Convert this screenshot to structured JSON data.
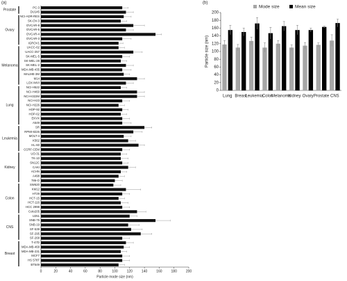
{
  "chart_data": [
    {
      "type": "hbar",
      "panel": "(a)",
      "xlabel": "Particle mode size (nm)",
      "xlim": [
        0,
        200
      ],
      "xticks": [
        0,
        20,
        40,
        60,
        80,
        100,
        120,
        140,
        160,
        180,
        200
      ],
      "color": "#111111",
      "error_color": "#999999",
      "groups": [
        {
          "name": "Prostate",
          "categories": [
            "PC-3",
            "DU145"
          ],
          "values": [
            110,
            115
          ],
          "errors": [
            8,
            10
          ]
        },
        {
          "name": "Ovary",
          "categories": [
            "NCI-ADR-RES",
            "SK-OV-3",
            "OVCAR-8",
            "OVCAR-5",
            "OVCAR-4",
            "OVCAR-3",
            "IGROV1"
          ],
          "values": [
            112,
            108,
            125,
            115,
            155,
            110,
            105
          ],
          "errors": [
            10,
            8,
            15,
            10,
            8,
            12,
            6
          ]
        },
        {
          "name": "Melanoma",
          "categories": [
            "UACC-62",
            "UACC-257",
            "SK-MEL-5",
            "SK-MEL-28",
            "SK-MEL-2",
            "MDA-MB-435",
            "MALME-3M",
            "M14",
            "LOX IMVI"
          ],
          "values": [
            105,
            125,
            110,
            108,
            115,
            110,
            112,
            130,
            115
          ],
          "errors": [
            8,
            12,
            10,
            8,
            10,
            12,
            8,
            10,
            10
          ]
        },
        {
          "name": "Lung",
          "categories": [
            "NCI-H522",
            "NCI-H460",
            "NCI-H322M",
            "NCI-H23",
            "NCI-H226",
            "HOP-92",
            "HOP-62",
            "EKVX",
            "A549"
          ],
          "values": [
            108,
            130,
            130,
            110,
            105,
            110,
            108,
            110,
            110
          ],
          "errors": [
            8,
            10,
            10,
            10,
            8,
            8,
            8,
            10,
            12
          ]
        },
        {
          "name": "Leukemia",
          "categories": [
            "SR",
            "RPMI-8226",
            "MOLT-4",
            "K562",
            "HL-60",
            "CCRF-CEM"
          ],
          "values": [
            140,
            125,
            112,
            118,
            132,
            110
          ],
          "errors": [
            10,
            12,
            10,
            10,
            8,
            10
          ]
        },
        {
          "name": "Kidney",
          "categories": [
            "UO-31",
            "TK-10",
            "SN12C",
            "CAKI",
            "ACHN",
            "A498",
            "786-O"
          ],
          "values": [
            108,
            108,
            110,
            118,
            108,
            105,
            100
          ],
          "errors": [
            8,
            10,
            8,
            10,
            8,
            8,
            10
          ]
        },
        {
          "name": "Colon",
          "categories": [
            "SW620",
            "KM12",
            "HT29",
            "HCT-15",
            "HCT-116",
            "HCC 2998",
            "Colo205"
          ],
          "values": [
            98,
            115,
            110,
            105,
            108,
            110,
            130
          ],
          "errors": [
            10,
            20,
            10,
            8,
            10,
            10,
            12
          ]
        },
        {
          "name": "CNS",
          "categories": [
            "U251",
            "SNB-75",
            "SNB-19",
            "SF-539",
            "SF-295",
            "SF-268"
          ],
          "values": [
            120,
            155,
            118,
            122,
            135,
            110
          ],
          "errors": [
            10,
            20,
            15,
            15,
            15,
            10
          ]
        },
        {
          "name": "Breast",
          "categories": [
            "T-47D",
            "MDA-MB-468",
            "MDA-MB-231",
            "MCF7",
            "HS 578T",
            "BT549"
          ],
          "values": [
            115,
            112,
            108,
            110,
            110,
            105
          ],
          "errors": [
            10,
            8,
            8,
            10,
            10,
            8
          ]
        }
      ]
    },
    {
      "type": "bar",
      "panel": "(b)",
      "ylabel": "Particle size (nm)",
      "ylim": [
        0,
        200
      ],
      "yticks": [
        0,
        20,
        40,
        60,
        80,
        100,
        120,
        140,
        160,
        180,
        200
      ],
      "categories": [
        "Lung",
        "Breast",
        "Leukemia",
        "Colon",
        "Melanoma",
        "Kidney",
        "Ovary",
        "Prostate",
        "CNS"
      ],
      "series": [
        {
          "name": "Mode size",
          "color": "#a6a6a6",
          "values": [
            118,
            110,
            127,
            110,
            120,
            110,
            115,
            117,
            128
          ],
          "errors": [
            10,
            8,
            10,
            12,
            8,
            7,
            8,
            5,
            15
          ]
        },
        {
          "name": "Mean size",
          "color": "#000000",
          "values": [
            155,
            150,
            172,
            147,
            165,
            155,
            155,
            163,
            173
          ],
          "errors": [
            12,
            10,
            15,
            15,
            12,
            12,
            5,
            2,
            10
          ]
        }
      ]
    }
  ]
}
